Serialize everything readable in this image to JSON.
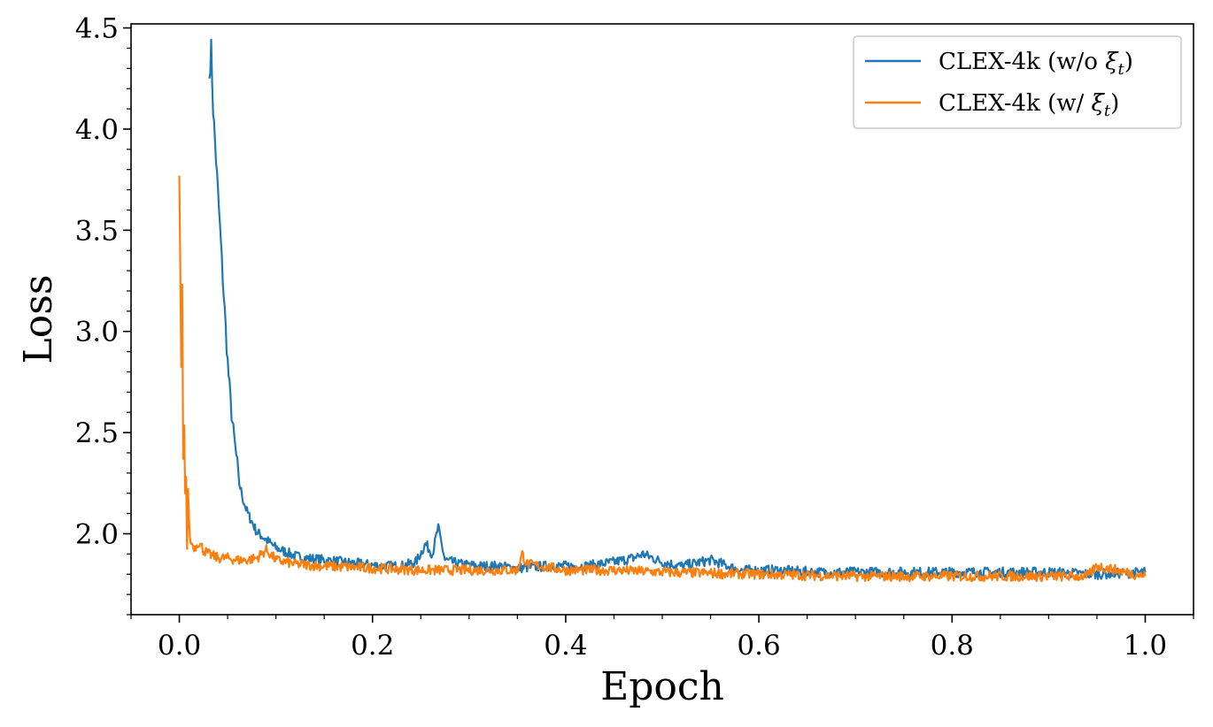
{
  "chart_data": {
    "type": "line",
    "title": "",
    "xlabel": "Epoch",
    "ylabel": "Loss",
    "xlim": [
      -0.05,
      1.05
    ],
    "ylim": [
      1.6,
      4.52
    ],
    "grid": false,
    "legend_position": "top-right",
    "x_ticks": [
      0.0,
      0.2,
      0.4,
      0.6,
      0.8,
      1.0
    ],
    "x_tick_labels": [
      "0.0",
      "0.2",
      "0.4",
      "0.6",
      "0.8",
      "1.0"
    ],
    "y_ticks": [
      2.0,
      2.5,
      3.0,
      3.5,
      4.0,
      4.5
    ],
    "y_tick_labels": [
      "2.0",
      "2.5",
      "3.0",
      "3.5",
      "4.0",
      "4.5"
    ],
    "series": [
      {
        "name": "CLEX-4k (w/o ξt)",
        "legend_prefix": "CLEX-4k (w/o ",
        "legend_symbol": "ξ",
        "legend_subscript": "t",
        "legend_suffix": ")",
        "color": "#1f77b4",
        "x": [
          0.031,
          0.033,
          0.035,
          0.038,
          0.041,
          0.044,
          0.047,
          0.05,
          0.053,
          0.056,
          0.059,
          0.062,
          0.066,
          0.07,
          0.075,
          0.08,
          0.085,
          0.09,
          0.1,
          0.11,
          0.12,
          0.13,
          0.15,
          0.17,
          0.19,
          0.21,
          0.23,
          0.245,
          0.255,
          0.262,
          0.268,
          0.275,
          0.29,
          0.31,
          0.33,
          0.35,
          0.38,
          0.42,
          0.45,
          0.47,
          0.48,
          0.5,
          0.52,
          0.55,
          0.58,
          0.62,
          0.66,
          0.7,
          0.75,
          0.8,
          0.85,
          0.9,
          0.95,
          1.0
        ],
        "y": [
          4.25,
          4.4,
          4.1,
          3.85,
          3.6,
          3.35,
          3.1,
          2.85,
          2.65,
          2.5,
          2.38,
          2.25,
          2.17,
          2.11,
          2.06,
          2.01,
          1.99,
          1.97,
          1.93,
          1.91,
          1.89,
          1.88,
          1.87,
          1.86,
          1.85,
          1.84,
          1.84,
          1.86,
          1.95,
          1.9,
          2.03,
          1.87,
          1.85,
          1.84,
          1.84,
          1.83,
          1.84,
          1.84,
          1.86,
          1.88,
          1.9,
          1.86,
          1.84,
          1.87,
          1.82,
          1.82,
          1.81,
          1.81,
          1.81,
          1.81,
          1.81,
          1.81,
          1.8,
          1.81
        ]
      },
      {
        "name": "CLEX-4k (w/ ξt)",
        "legend_prefix": "CLEX-4k (w/ ",
        "legend_symbol": "ξ",
        "legend_subscript": "t",
        "legend_suffix": ")",
        "color": "#ff7f0e",
        "x": [
          0.0,
          0.001,
          0.002,
          0.003,
          0.004,
          0.005,
          0.006,
          0.007,
          0.008,
          0.009,
          0.011,
          0.013,
          0.016,
          0.02,
          0.025,
          0.03,
          0.04,
          0.05,
          0.06,
          0.07,
          0.08,
          0.09,
          0.1,
          0.12,
          0.15,
          0.2,
          0.25,
          0.3,
          0.35,
          0.355,
          0.36,
          0.4,
          0.45,
          0.5,
          0.6,
          0.7,
          0.8,
          0.9,
          0.94,
          0.95,
          1.0
        ],
        "y": [
          3.77,
          3.3,
          2.8,
          3.2,
          2.35,
          2.5,
          2.22,
          2.28,
          1.93,
          2.2,
          1.97,
          1.95,
          1.93,
          1.96,
          1.92,
          1.9,
          1.88,
          1.88,
          1.87,
          1.87,
          1.88,
          1.92,
          1.87,
          1.85,
          1.84,
          1.83,
          1.82,
          1.82,
          1.82,
          1.9,
          1.85,
          1.82,
          1.82,
          1.81,
          1.8,
          1.79,
          1.79,
          1.79,
          1.79,
          1.84,
          1.79
        ]
      }
    ]
  }
}
